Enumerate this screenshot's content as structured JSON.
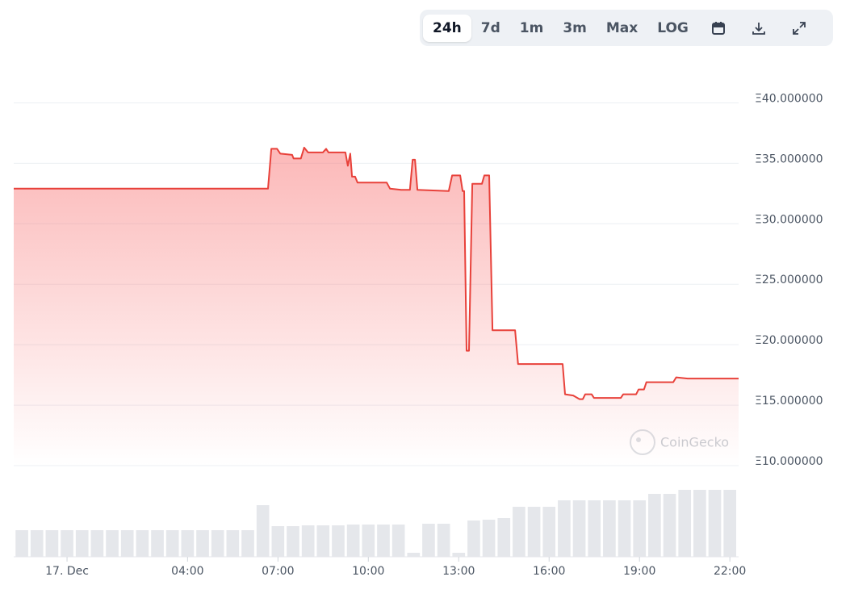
{
  "toolbar": [
    "24h",
    "7d",
    "1m",
    "3m",
    "Max",
    "LOG"
  ],
  "watermark": "CoinGecko",
  "chart_data": {
    "type": "line",
    "xlim": [
      -1.77,
      22.29
    ],
    "xticks": [
      {
        "value": 0,
        "label": "17. Dec"
      },
      {
        "value": 4,
        "label": "04:00"
      },
      {
        "value": 7,
        "label": "07:00"
      },
      {
        "value": 10,
        "label": "10:00"
      },
      {
        "value": 13,
        "label": "13:00"
      },
      {
        "value": 16,
        "label": "16:00"
      },
      {
        "value": 19,
        "label": "19:00"
      },
      {
        "value": 22,
        "label": "22:00"
      }
    ],
    "ylim": [
      10,
      43.7
    ],
    "yticks": [
      {
        "value": 10,
        "label": "Ξ10.000000"
      },
      {
        "value": 15,
        "label": "Ξ15.000000"
      },
      {
        "value": 20,
        "label": "Ξ20.000000"
      },
      {
        "value": 25,
        "label": "Ξ25.000000"
      },
      {
        "value": 30,
        "label": "Ξ30.000000"
      },
      {
        "value": 35,
        "label": "Ξ35.000000"
      },
      {
        "value": 40,
        "label": "Ξ40.000000"
      }
    ],
    "grid": true,
    "series": [
      {
        "color": "#e8413a",
        "x": [
          -1.77,
          6.67,
          6.78,
          6.97,
          7.08,
          7.47,
          7.52,
          7.76,
          7.87,
          8.0,
          8.49,
          8.6,
          8.68,
          9.24,
          9.32,
          9.4,
          9.46,
          9.56,
          9.64,
          10.61,
          10.72,
          11.09,
          11.38,
          11.47,
          11.55,
          11.63,
          12.67,
          12.78,
          13.05,
          13.13,
          13.18,
          13.26,
          13.34,
          13.45,
          13.77,
          13.85,
          14.01,
          14.12,
          14.87,
          14.97,
          16.45,
          16.53,
          16.8,
          17.01,
          17.12,
          17.2,
          17.41,
          17.49,
          18.38,
          18.46,
          18.89,
          18.97,
          19.15,
          19.23,
          20.12,
          20.22,
          20.6,
          22.29
        ],
        "values": [
          32.9,
          32.9,
          36.2,
          36.2,
          35.8,
          35.7,
          35.4,
          35.4,
          36.3,
          35.9,
          35.9,
          36.2,
          35.9,
          35.9,
          34.8,
          35.8,
          33.9,
          33.9,
          33.4,
          33.4,
          32.9,
          32.8,
          32.8,
          35.3,
          35.3,
          32.8,
          32.7,
          34.0,
          34.0,
          32.7,
          32.7,
          19.5,
          19.5,
          33.3,
          33.3,
          34.0,
          34.0,
          21.2,
          21.2,
          18.4,
          18.4,
          15.9,
          15.8,
          15.5,
          15.5,
          15.9,
          15.9,
          15.6,
          15.6,
          15.9,
          15.9,
          16.3,
          16.3,
          16.9,
          16.9,
          17.3,
          17.2,
          17.2
        ]
      }
    ],
    "volume": {
      "color": "#e5e7eb",
      "ylim": [
        0,
        100
      ],
      "x": [
        -1.5,
        -1,
        -0.5,
        0,
        0.5,
        1,
        1.5,
        2,
        2.5,
        3,
        3.5,
        4,
        4.5,
        5,
        5.5,
        6,
        6.5,
        7,
        7.5,
        8,
        8.5,
        9,
        9.5,
        10,
        10.5,
        11,
        11.5,
        12,
        12.5,
        13,
        13.5,
        14,
        14.5,
        15,
        15.5,
        16,
        16.5,
        17,
        17.5,
        18,
        18.5,
        19,
        19.5,
        20,
        20.5,
        21,
        21.5,
        22
      ],
      "values": [
        33,
        33,
        33,
        33,
        33,
        33,
        33,
        33,
        33,
        33,
        33,
        33,
        33,
        33,
        33,
        33,
        64,
        38,
        38,
        39,
        39,
        39,
        40,
        40,
        40,
        40,
        5,
        41,
        41,
        5,
        45,
        46,
        48,
        62,
        62,
        62,
        70,
        70,
        70,
        70,
        70,
        70,
        78,
        78,
        83,
        83,
        83,
        83
      ]
    }
  }
}
